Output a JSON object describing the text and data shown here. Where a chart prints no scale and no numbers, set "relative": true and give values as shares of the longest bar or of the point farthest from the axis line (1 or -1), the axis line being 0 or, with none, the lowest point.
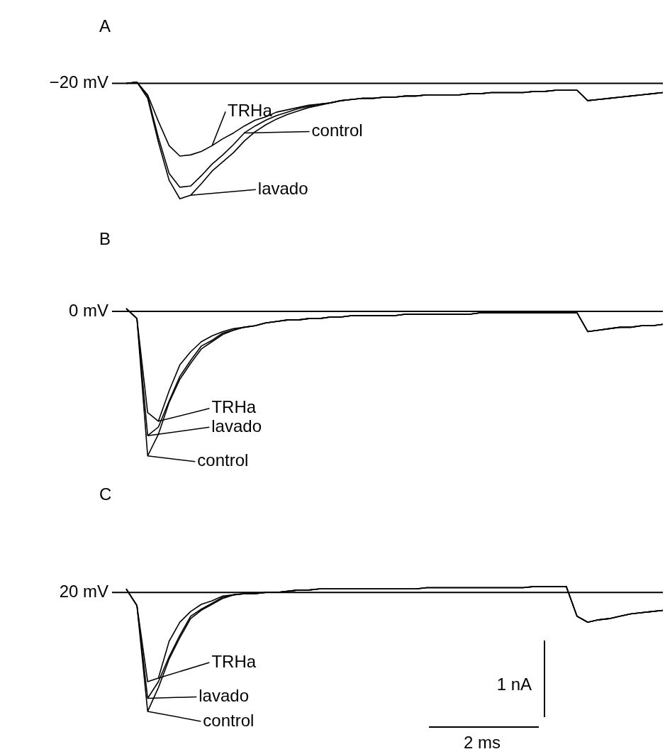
{
  "chart_data": [
    {
      "type": "line",
      "title": "A",
      "relative": true,
      "legend": "bottom",
      "categories": [
        null,
        null,
        null,
        null,
        null,
        null,
        null,
        null,
        null,
        null,
        null,
        null,
        null,
        null,
        null,
        null,
        null,
        null,
        null,
        null,
        null,
        null,
        null,
        null,
        null,
        null,
        null,
        null,
        null,
        null,
        null,
        null,
        null,
        null,
        null,
        null,
        null,
        null,
        null,
        null,
        null,
        null,
        null,
        null,
        null,
        null,
        null,
        null,
        null,
        null,
        null
      ],
      "ref_lines": [
        {
          "axis": "y",
          "value": 0,
          "label": "−20 mV"
        }
      ],
      "series": [
        {
          "name": "TRHa",
          "color": "#000000",
          "values": [
            0,
            0.01,
            -0.1,
            -0.33,
            -0.54,
            -0.63,
            -0.62,
            -0.59,
            -0.54,
            -0.48,
            -0.43,
            -0.37,
            -0.32,
            -0.29,
            -0.25,
            -0.23,
            -0.21,
            -0.19,
            -0.18,
            -0.17,
            -0.15,
            -0.14,
            -0.13,
            -0.13,
            -0.12,
            -0.12,
            -0.11,
            -0.11,
            -0.1,
            -0.1,
            -0.1,
            -0.1,
            -0.09,
            -0.09,
            -0.08,
            -0.08,
            -0.08,
            -0.08,
            -0.07,
            -0.07,
            -0.06,
            -0.06,
            -0.06,
            -0.15,
            -0.14,
            -0.13,
            -0.12,
            -0.11,
            -0.1,
            -0.09,
            -0.08
          ]
        },
        {
          "name": "control",
          "color": "#000000",
          "values": [
            0,
            0.01,
            -0.11,
            -0.47,
            -0.78,
            -0.9,
            -0.89,
            -0.8,
            -0.7,
            -0.62,
            -0.53,
            -0.43,
            -0.37,
            -0.32,
            -0.28,
            -0.25,
            -0.22,
            -0.2,
            -0.18,
            -0.17,
            -0.15,
            -0.14,
            -0.13,
            -0.13,
            -0.12,
            -0.12,
            -0.11,
            -0.11,
            -0.1,
            -0.1,
            -0.1,
            -0.1,
            -0.09,
            -0.09,
            -0.08,
            -0.08,
            -0.08,
            -0.08,
            -0.07,
            -0.07,
            -0.06,
            -0.06,
            -0.06,
            -0.15,
            -0.14,
            -0.13,
            -0.12,
            -0.11,
            -0.1,
            -0.09,
            -0.08
          ]
        },
        {
          "name": "lavado",
          "color": "#000000",
          "values": [
            0,
            0.01,
            -0.13,
            -0.51,
            -0.84,
            -1,
            -0.97,
            -0.87,
            -0.76,
            -0.68,
            -0.6,
            -0.5,
            -0.42,
            -0.36,
            -0.31,
            -0.27,
            -0.24,
            -0.21,
            -0.19,
            -0.17,
            -0.15,
            -0.14,
            -0.13,
            -0.13,
            -0.12,
            -0.12,
            -0.11,
            -0.11,
            -0.1,
            -0.1,
            -0.1,
            -0.1,
            -0.09,
            -0.09,
            -0.08,
            -0.08,
            -0.08,
            -0.08,
            -0.07,
            -0.07,
            -0.06,
            -0.06,
            -0.06,
            -0.15,
            -0.14,
            -0.13,
            -0.12,
            -0.11,
            -0.1,
            -0.09,
            -0.08
          ]
        }
      ]
    },
    {
      "type": "line",
      "title": "B",
      "relative": true,
      "legend": "bottom left",
      "categories": [
        null,
        null,
        null,
        null,
        null,
        null,
        null,
        null,
        null,
        null,
        null,
        null,
        null,
        null,
        null,
        null,
        null,
        null,
        null,
        null,
        null,
        null,
        null,
        null,
        null,
        null,
        null,
        null,
        null,
        null,
        null,
        null,
        null,
        null,
        null,
        null,
        null,
        null,
        null,
        null,
        null,
        null,
        null,
        null,
        null,
        null,
        null,
        null,
        null,
        null,
        null
      ],
      "ref_lines": [
        {
          "axis": "y",
          "value": 0,
          "label": "0 mV"
        }
      ],
      "series": [
        {
          "name": "TRHa",
          "color": "#000000",
          "values": [
            0.02,
            -0.05,
            -0.7,
            -0.76,
            -0.55,
            -0.37,
            -0.28,
            -0.21,
            -0.17,
            -0.14,
            -0.12,
            -0.11,
            -0.1,
            -0.08,
            -0.07,
            -0.06,
            -0.06,
            -0.05,
            -0.05,
            -0.04,
            -0.04,
            -0.03,
            -0.03,
            -0.03,
            -0.03,
            -0.03,
            -0.02,
            -0.02,
            -0.02,
            -0.02,
            -0.02,
            -0.02,
            -0.02,
            -0.01,
            -0.01,
            -0.01,
            -0.01,
            -0.01,
            -0.01,
            -0.01,
            -0.01,
            -0.01,
            -0.01,
            -0.14,
            -0.13,
            -0.12,
            -0.11,
            -0.11,
            -0.1,
            -0.1,
            -0.09
          ]
        },
        {
          "name": "lavado",
          "color": "#000000",
          "values": [
            0.02,
            -0.05,
            -0.86,
            -0.8,
            -0.62,
            -0.45,
            -0.34,
            -0.24,
            -0.2,
            -0.15,
            -0.13,
            -0.11,
            -0.1,
            -0.08,
            -0.07,
            -0.06,
            -0.06,
            -0.05,
            -0.05,
            -0.04,
            -0.04,
            -0.03,
            -0.03,
            -0.03,
            -0.03,
            -0.03,
            -0.02,
            -0.02,
            -0.02,
            -0.02,
            -0.02,
            -0.02,
            -0.02,
            -0.01,
            -0.01,
            -0.01,
            -0.01,
            -0.01,
            -0.01,
            -0.01,
            -0.01,
            -0.01,
            -0.01,
            -0.14,
            -0.13,
            -0.12,
            -0.11,
            -0.11,
            -0.1,
            -0.1,
            -0.09
          ]
        },
        {
          "name": "control",
          "color": "#000000",
          "values": [
            0.02,
            -0.05,
            -1,
            -0.85,
            -0.63,
            -0.47,
            -0.36,
            -0.26,
            -0.21,
            -0.16,
            -0.13,
            -0.11,
            -0.1,
            -0.08,
            -0.07,
            -0.06,
            -0.06,
            -0.05,
            -0.05,
            -0.04,
            -0.04,
            -0.03,
            -0.03,
            -0.03,
            -0.03,
            -0.03,
            -0.02,
            -0.02,
            -0.02,
            -0.02,
            -0.02,
            -0.02,
            -0.02,
            -0.01,
            -0.01,
            -0.01,
            -0.01,
            -0.01,
            -0.01,
            -0.01,
            -0.01,
            -0.01,
            -0.01,
            -0.14,
            -0.13,
            -0.12,
            -0.11,
            -0.11,
            -0.1,
            -0.1,
            -0.09
          ]
        }
      ]
    },
    {
      "type": "line",
      "title": "C",
      "relative": true,
      "legend": "bottom left",
      "categories": [
        null,
        null,
        null,
        null,
        null,
        null,
        null,
        null,
        null,
        null,
        null,
        null,
        null,
        null,
        null,
        null,
        null,
        null,
        null,
        null,
        null,
        null,
        null,
        null,
        null,
        null,
        null,
        null,
        null,
        null,
        null,
        null,
        null,
        null,
        null,
        null,
        null,
        null,
        null,
        null,
        null,
        null,
        null,
        null,
        null,
        null,
        null,
        null,
        null,
        null,
        null
      ],
      "ref_lines": [
        {
          "axis": "y",
          "value": 0,
          "label": "20 mV"
        }
      ],
      "annotations": [
        "1 nA",
        "2 ms"
      ],
      "series": [
        {
          "name": "TRHa",
          "color": "#000000",
          "values": [
            0.03,
            -0.11,
            -0.75,
            -0.72,
            -0.41,
            -0.25,
            -0.16,
            -0.1,
            -0.07,
            -0.03,
            -0.02,
            -0.01,
            -0.01,
            0,
            0,
            0.01,
            0.02,
            0.02,
            0.03,
            0.03,
            0.03,
            0.03,
            0.03,
            0.03,
            0.03,
            0.03,
            0.03,
            0.03,
            0.04,
            0.04,
            0.04,
            0.04,
            0.04,
            0.04,
            0.04,
            0.04,
            0.04,
            0.04,
            0.05,
            0.05,
            0.05,
            0.05,
            -0.2,
            -0.25,
            -0.23,
            -0.22,
            -0.2,
            -0.18,
            -0.17,
            -0.16,
            -0.15
          ]
        },
        {
          "name": "lavado",
          "color": "#000000",
          "values": [
            0.03,
            -0.11,
            -0.89,
            -0.75,
            -0.54,
            -0.36,
            -0.2,
            -0.14,
            -0.09,
            -0.04,
            -0.02,
            -0.01,
            -0.01,
            0,
            0,
            0.01,
            0.02,
            0.02,
            0.03,
            0.03,
            0.03,
            0.03,
            0.03,
            0.03,
            0.03,
            0.03,
            0.03,
            0.03,
            0.04,
            0.04,
            0.04,
            0.04,
            0.04,
            0.04,
            0.04,
            0.04,
            0.04,
            0.04,
            0.05,
            0.05,
            0.05,
            0.05,
            -0.2,
            -0.25,
            -0.23,
            -0.22,
            -0.2,
            -0.18,
            -0.17,
            -0.16,
            -0.15
          ]
        },
        {
          "name": "control",
          "color": "#000000",
          "values": [
            0.03,
            -0.11,
            -1,
            -0.8,
            -0.56,
            -0.38,
            -0.22,
            -0.15,
            -0.1,
            -0.05,
            -0.02,
            -0.01,
            -0.01,
            0,
            0,
            0.01,
            0.02,
            0.02,
            0.03,
            0.03,
            0.03,
            0.03,
            0.03,
            0.03,
            0.03,
            0.03,
            0.03,
            0.03,
            0.04,
            0.04,
            0.04,
            0.04,
            0.04,
            0.04,
            0.04,
            0.04,
            0.04,
            0.04,
            0.05,
            0.05,
            0.05,
            0.05,
            -0.2,
            -0.25,
            -0.23,
            -0.22,
            -0.2,
            -0.18,
            -0.17,
            -0.16,
            -0.15
          ]
        }
      ]
    }
  ]
}
